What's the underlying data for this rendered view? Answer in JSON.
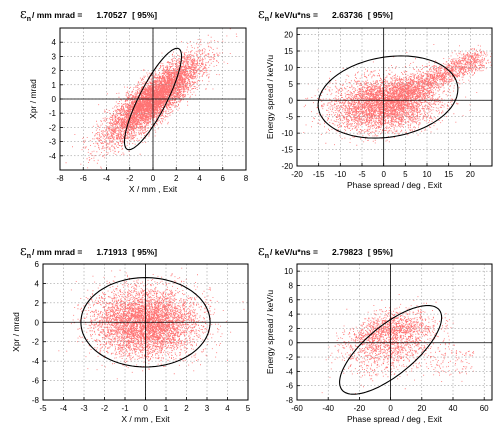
{
  "colors": {
    "particles": "#ff0000",
    "ellipse": "#000000",
    "grid": "#888888"
  },
  "chart_data": [
    {
      "type": "scatter",
      "panel": "top-left",
      "title_symbol": "ε",
      "title_sub": "n",
      "title_units": "/ mm mrad =",
      "title_value": "1.70527",
      "title_conf": "[ 95%]",
      "xlabel": "X / mm ,  Exit",
      "ylabel": "Xpr / mrad",
      "xlim": [
        -8,
        8
      ],
      "ylim": [
        -5,
        5
      ],
      "xticks": [
        -8,
        -6,
        -4,
        -2,
        0,
        2,
        4,
        6,
        8
      ],
      "yticks": [
        -4,
        -3,
        -2,
        -1,
        0,
        1,
        2,
        3,
        4
      ],
      "grid": true,
      "distribution": {
        "cx": 0,
        "cy": 0,
        "sx": 2.0,
        "sy": 1.45,
        "corr": 0.84,
        "n": 7000
      },
      "ellipse": {
        "cx": 0,
        "cy": 0,
        "semi_major": 6.2,
        "semi_minor": 1.65,
        "angle_deg": 32
      }
    },
    {
      "type": "scatter",
      "panel": "top-right",
      "title_symbol": "ε",
      "title_sub": "n",
      "title_units": "/ keV/u*ns =",
      "title_value": "2.63736",
      "title_conf": "[ 95%]",
      "xlabel": "Phase spread / deg ,  Exit",
      "ylabel": "Energy spread / keV/u",
      "xlim": [
        -20,
        25
      ],
      "ylim": [
        -20,
        22
      ],
      "xticks": [
        -20,
        -15,
        -10,
        -5,
        0,
        5,
        10,
        15,
        20
      ],
      "yticks": [
        -20,
        -15,
        -10,
        -5,
        0,
        5,
        10,
        15,
        20
      ],
      "grid": true,
      "distribution": {
        "cx": 0,
        "cy": -1,
        "sx": 6.0,
        "sy": 4.0,
        "corr": 0.15,
        "n": 6000,
        "tail": "up-right"
      },
      "ellipse": {
        "cx": 1,
        "cy": 1,
        "semi_major": 16.5,
        "semi_minor": 12,
        "angle_deg": 18
      }
    },
    {
      "type": "scatter",
      "panel": "bottom-left",
      "title_symbol": "ε",
      "title_sub": "n",
      "title_units": "/ mm mrad =",
      "title_value": "1.71913",
      "title_conf": "[ 95%]",
      "xlabel": "X / mm ,  Exit",
      "ylabel": "Xpr / mrad",
      "xlim": [
        -5,
        5
      ],
      "ylim": [
        -8,
        6
      ],
      "xticks": [
        -5,
        -4,
        -3,
        -2,
        -1,
        0,
        1,
        2,
        3,
        4,
        5
      ],
      "yticks": [
        -8,
        -6,
        -4,
        -2,
        0,
        2,
        4,
        6
      ],
      "grid": true,
      "distribution": {
        "cx": 0,
        "cy": 0,
        "sx": 1.25,
        "sy": 1.7,
        "corr": 0.0,
        "n": 8000
      },
      "ellipse": {
        "cx": 0,
        "cy": 0,
        "semi_major": 3.15,
        "semi_minor": 4.6,
        "angle_deg": 0
      }
    },
    {
      "type": "scatter",
      "panel": "bottom-right",
      "title_symbol": "ε",
      "title_sub": "n",
      "title_units": "/ keV/u*ns =",
      "title_value": "2.79823",
      "title_conf": "[ 95%]",
      "xlabel": "Phase spread / deg ,  Exit",
      "ylabel": "Energy spread / keV/u",
      "xlim": [
        -60,
        65
      ],
      "ylim": [
        -8,
        11
      ],
      "xticks": [
        -60,
        -40,
        -20,
        0,
        20,
        40,
        60
      ],
      "yticks": [
        -8,
        -6,
        -4,
        -2,
        0,
        2,
        4,
        6,
        8,
        10
      ],
      "grid": true,
      "distribution": {
        "cx": 0,
        "cy": -1,
        "sx": 13,
        "sy": 1.9,
        "corr": 0.4,
        "n": 8000,
        "shape": "crescent"
      },
      "ellipse": {
        "cx": 0,
        "cy": -1,
        "semi_major": 33,
        "semi_minor": 4.2,
        "angle_deg": 8
      }
    }
  ]
}
